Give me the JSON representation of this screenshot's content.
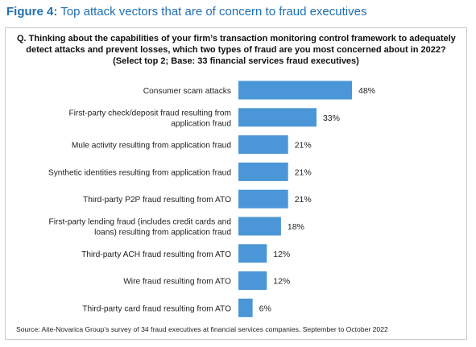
{
  "figure": {
    "label": "Figure 4:",
    "title": "Top attack vectors that are of concern to fraud executives"
  },
  "question_lines": [
    "Q. Thinking about the capabilities of your firm’s transaction monitoring control framework to adequately",
    "detect attacks and prevent losses, which two types of fraud are you most concerned about in 2022?",
    "(Select top 2; Base: 33 financial services fraud executives)"
  ],
  "source": "Source: Aite-Novarica Group’s survey of 34 fraud executives at financial services companies, September to October 2022",
  "colors": {
    "bar": "#4a96d6",
    "title": "#1f6fb2"
  },
  "chart_data": {
    "type": "bar",
    "orientation": "horizontal",
    "categories": [
      [
        "Consumer scam attacks"
      ],
      [
        "First-party check/deposit fraud resulting from",
        "application fraud"
      ],
      [
        "Mule activity resulting from application fraud"
      ],
      [
        "Synthetic identities resulting from application fraud"
      ],
      [
        "Third-party P2P fraud resulting from ATO"
      ],
      [
        "First-party lending fraud (includes credit cards and",
        "loans) resulting from application fraud"
      ],
      [
        "Third-party ACH fraud resulting from ATO"
      ],
      [
        "Wire fraud resulting from ATO"
      ],
      [
        "Third-party card fraud resulting from ATO"
      ]
    ],
    "values": [
      48,
      33,
      21,
      21,
      21,
      18,
      12,
      12,
      6
    ],
    "data_labels": [
      "48%",
      "33%",
      "21%",
      "21%",
      "21%",
      "18%",
      "12%",
      "12%",
      "6%"
    ],
    "xlim": [
      0,
      50
    ],
    "grid": false,
    "legend": "none"
  }
}
